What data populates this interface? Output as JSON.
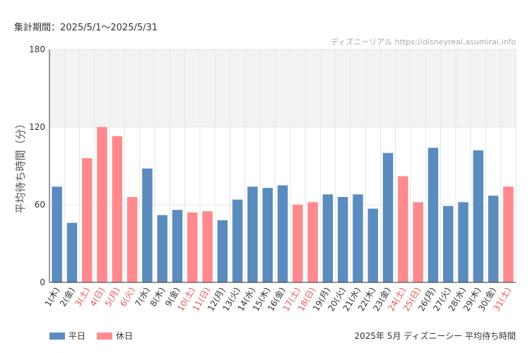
{
  "header": {
    "period": "集計期間：2025/5/1～2025/5/31",
    "credit": "ディズニーリアル https://disneyreal.asumirai.info"
  },
  "colors": {
    "weekday": "#5b8cbf",
    "holiday": "#ff8a8e",
    "holiday_text": "#e8575c",
    "band": "#f3f3f3",
    "grid": "#e6e6e6"
  },
  "legend": {
    "weekday": "平日",
    "holiday": "休日"
  },
  "caption": "2025年 5月 ディズニーシー 平均待ち時間",
  "chart_data": {
    "type": "bar",
    "title": "2025年 5月 ディズニーシー 平均待ち時間",
    "ylabel": "平均待ち時間（分）",
    "ylim": [
      0,
      180
    ],
    "yticks": [
      "0",
      "60",
      "120",
      "180"
    ],
    "band": [
      120,
      180
    ],
    "categories": [
      "1(木)",
      "2(金)",
      "3(土)",
      "4(日)",
      "5(月)",
      "6(火)",
      "7(水)",
      "8(木)",
      "9(金)",
      "10(土)",
      "11(日)",
      "12(月)",
      "13(火)",
      "14(水)",
      "15(木)",
      "16(金)",
      "17(土)",
      "18(日)",
      "19(月)",
      "20(火)",
      "21(水)",
      "22(木)",
      "23(金)",
      "24(土)",
      "25(日)",
      "26(月)",
      "27(火)",
      "28(水)",
      "29(木)",
      "30(金)",
      "31(土)"
    ],
    "values": [
      74,
      46,
      96,
      120,
      113,
      66,
      88,
      52,
      56,
      54,
      55,
      48,
      64,
      74,
      73,
      75,
      60,
      62,
      68,
      66,
      68,
      57,
      100,
      82,
      62,
      104,
      59,
      62,
      102,
      67,
      74
    ],
    "holiday": [
      false,
      false,
      true,
      true,
      true,
      true,
      false,
      false,
      false,
      true,
      true,
      false,
      false,
      false,
      false,
      false,
      true,
      true,
      false,
      false,
      false,
      false,
      false,
      true,
      true,
      false,
      false,
      false,
      false,
      false,
      true
    ]
  }
}
